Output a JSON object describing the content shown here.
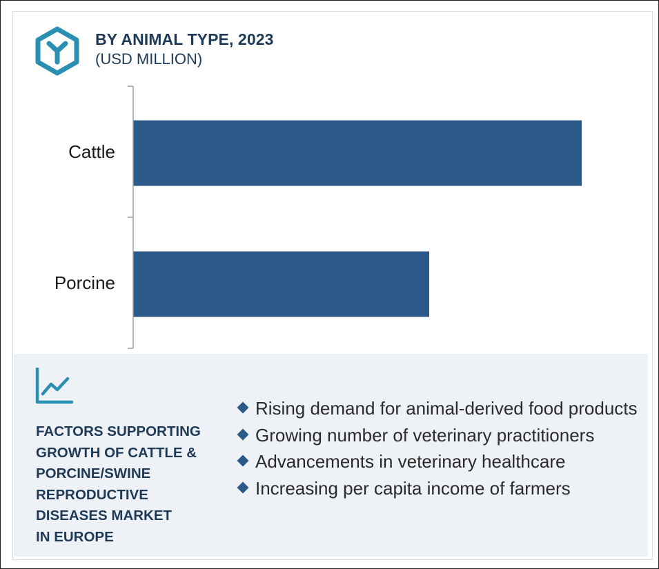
{
  "header": {
    "title": "BY ANIMAL TYPE, 2023",
    "subtitle": "(USD MILLION)",
    "logo_icon": "hexagon-y-logo-icon",
    "accent_color": "#2a8fb0"
  },
  "chart_data": {
    "type": "bar",
    "orientation": "horizontal",
    "categories": [
      "Cattle",
      "Porcine"
    ],
    "values": [
      100,
      66
    ],
    "xlim": [
      0,
      100
    ],
    "title": "BY ANIMAL TYPE, 2023",
    "subtitle": "(USD MILLION)",
    "xlabel": "",
    "ylabel": "",
    "grid": false,
    "bar_color": "#2c5a88"
  },
  "factors": {
    "icon": "line-chart-trend-icon",
    "heading": "FACTORS SUPPORTING\nGROWTH OF CATTLE &\nPORCINE/SWINE\nREPRODUCTIVE\nDISEASES MARKET\nIN EUROPE",
    "items": [
      "Rising demand for animal-derived food products",
      "Growing number of veterinary practitioners",
      "Advancements in veterinary healthcare",
      "Increasing per capita income of farmers"
    ],
    "bullet_color": "#2c5a88",
    "background_color": "#eef1f5"
  }
}
